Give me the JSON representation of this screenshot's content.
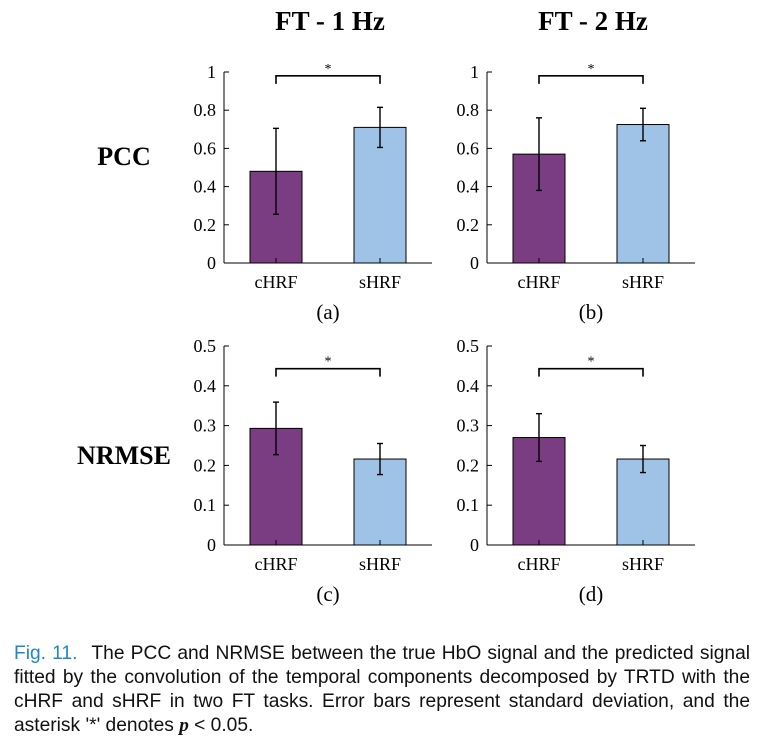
{
  "figure": {
    "column_titles": [
      "FT - 1 Hz",
      "FT - 2 Hz"
    ],
    "row_labels": [
      "PCC",
      "NRMSE"
    ],
    "colors": {
      "chrf": "#7b3d82",
      "shrf": "#9fc3e7",
      "axis": "#000000"
    }
  },
  "chart_data": [
    {
      "type": "bar",
      "panel": "(a)",
      "metric": "PCC",
      "task": "FT - 1 Hz",
      "categories": [
        "cHRF",
        "sHRF"
      ],
      "values": [
        0.48,
        0.71
      ],
      "errors": [
        0.225,
        0.105
      ],
      "ylim": [
        0,
        1
      ],
      "yticks": [
        0,
        0.2,
        0.4,
        0.6,
        0.8,
        1
      ],
      "ytick_labels": [
        "0",
        "0.2",
        "0.4",
        "0.6",
        "0.8",
        "1"
      ],
      "significance": "*",
      "bracket_y": 0.98
    },
    {
      "type": "bar",
      "panel": "(b)",
      "metric": "PCC",
      "task": "FT - 2 Hz",
      "categories": [
        "cHRF",
        "sHRF"
      ],
      "values": [
        0.57,
        0.725
      ],
      "errors": [
        0.19,
        0.085
      ],
      "ylim": [
        0,
        1
      ],
      "yticks": [
        0,
        0.2,
        0.4,
        0.6,
        0.8,
        1
      ],
      "ytick_labels": [
        "0",
        "0.2",
        "0.4",
        "0.6",
        "0.8",
        "1"
      ],
      "significance": "*",
      "bracket_y": 0.98
    },
    {
      "type": "bar",
      "panel": "(c)",
      "metric": "NRMSE",
      "task": "FT - 1 Hz",
      "categories": [
        "cHRF",
        "sHRF"
      ],
      "values": [
        0.293,
        0.216
      ],
      "errors": [
        0.066,
        0.039
      ],
      "ylim": [
        0,
        0.5
      ],
      "yticks": [
        0,
        0.1,
        0.2,
        0.3,
        0.4,
        0.5
      ],
      "ytick_labels": [
        "0",
        "0.1",
        "0.2",
        "0.3",
        "0.4",
        "0.5"
      ],
      "significance": "*",
      "bracket_y": 0.443
    },
    {
      "type": "bar",
      "panel": "(d)",
      "metric": "NRMSE",
      "task": "FT - 2 Hz",
      "categories": [
        "cHRF",
        "sHRF"
      ],
      "values": [
        0.27,
        0.216
      ],
      "errors": [
        0.06,
        0.034
      ],
      "ylim": [
        0,
        0.5
      ],
      "yticks": [
        0,
        0.1,
        0.2,
        0.3,
        0.4,
        0.5
      ],
      "ytick_labels": [
        "0",
        "0.1",
        "0.2",
        "0.3",
        "0.4",
        "0.5"
      ],
      "significance": "*",
      "bracket_y": 0.443
    }
  ],
  "caption": {
    "label": "Fig. 11.",
    "text_before_p": "The PCC and NRMSE between the true HbO signal and the predicted signal fitted by the convolution of the temporal components decomposed by TRTD with the cHRF and sHRF in two FT tasks. Error bars represent standard deviation, and the asterisk '*' denotes ",
    "p_symbol": "p",
    "text_after_p": " < 0.05."
  }
}
